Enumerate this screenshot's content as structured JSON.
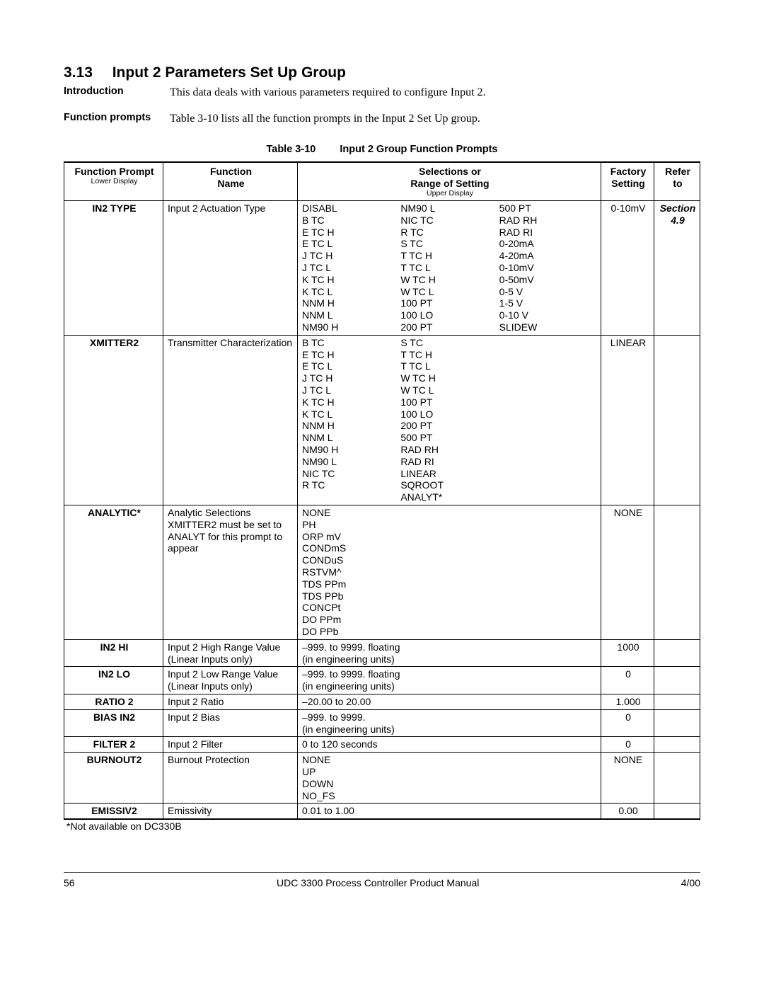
{
  "section": {
    "number": "3.13",
    "title": "Input 2 Parameters Set Up Group"
  },
  "intro": {
    "label": "Introduction",
    "text": "This data deals with various parameters required to configure Input 2."
  },
  "fprompts": {
    "label": "Function prompts",
    "text": "Table 3-10 lists all the function prompts in the Input 2 Set Up group."
  },
  "table": {
    "caption_num": "Table 3-10",
    "caption_title": "Input 2 Group Function Prompts",
    "headers": {
      "prompt": "Function Prompt",
      "prompt_sub": "Lower Display",
      "name": "Function\nName",
      "sel": "Selections or\nRange of Setting",
      "sel_sub": "Upper Display",
      "factory": "Factory\nSetting",
      "refer": "Refer\nto"
    },
    "rows": [
      {
        "prompt": "IN2 TYPE",
        "name": "Input 2 Actuation Type",
        "sel_cols": [
          [
            "DISABL",
            "B TC",
            "E TC H",
            "E TC L",
            "J TC H",
            "J TC L",
            "K TC H",
            "K TC L",
            "NNM H",
            "NNM L",
            "NM90 H"
          ],
          [
            "NM90 L",
            "NIC TC",
            "R TC",
            "S TC",
            "T TC H",
            "T TC L",
            "W TC H",
            "W TC L",
            "100 PT",
            "100 LO",
            "200 PT"
          ],
          [
            "500 PT",
            "RAD RH",
            "RAD RI",
            "0-20mA",
            "4-20mA",
            "0-10mV",
            "0-50mV",
            "0-5 V",
            "1-5 V",
            "0-10 V",
            "SLIDEW"
          ]
        ],
        "factory": "0-10mV",
        "refer": "Section\n4.9",
        "refer_styled": true
      },
      {
        "prompt": "XMITTER2",
        "name": "Transmitter Characterization",
        "sel_cols": [
          [
            "B TC",
            "E TC H",
            "E TC L",
            "J TC H",
            "J TC L",
            "K TC H",
            "K TC L",
            "NNM H",
            "NNM L",
            "NM90 H",
            "NM90 L",
            "NIC TC",
            "R TC"
          ],
          [
            "S TC",
            "T TC H",
            "T TC L",
            "W TC H",
            "W TC L",
            "100 PT",
            "100 LO",
            "200 PT",
            "500 PT",
            "RAD RH",
            "RAD RI",
            "LINEAR",
            "SQROOT",
            "ANALYT*"
          ],
          []
        ],
        "factory": "LINEAR"
      },
      {
        "prompt": "ANALYTIC*",
        "name": "Analytic Selections\nXMITTER2 must be set to ANALYT for this prompt to appear",
        "sel_cols": [
          [
            "NONE",
            "PH",
            "ORP mV",
            "CONDmS",
            "CONDuS",
            "RSTVM^",
            "TDS PPm",
            "TDS PPb",
            "CONCPt",
            "DO PPm",
            "DO PPb"
          ]
        ],
        "factory": "NONE"
      },
      {
        "prompt": "IN2 HI",
        "name": "Input 2 High Range Value\n(Linear Inputs only)",
        "sel_text": "–999. to 9999. floating\n(in engineering units)",
        "factory": "1000"
      },
      {
        "prompt": "IN2 LO",
        "name": "Input 2 Low Range Value\n(Linear Inputs only)",
        "sel_text": "–999. to 9999. floating\n(in engineering units)",
        "factory": "0"
      },
      {
        "prompt": "RATIO 2",
        "name": "Input 2 Ratio",
        "sel_text": "–20.00 to 20.00",
        "factory": "1.000"
      },
      {
        "prompt": "BIAS IN2",
        "name": "Input 2 Bias",
        "sel_text": "–999. to 9999.\n(in engineering units)",
        "factory": "0"
      },
      {
        "prompt": "FILTER 2",
        "name": "Input 2 Filter",
        "sel_text": "0 to 120 seconds",
        "factory": "0"
      },
      {
        "prompt": "BURNOUT2",
        "name": "Burnout Protection",
        "sel_cols": [
          [
            "NONE",
            "UP",
            "DOWN",
            "NO_FS"
          ]
        ],
        "factory": "NONE"
      },
      {
        "prompt": "EMISSIV2",
        "name": "Emissivity",
        "sel_text": "0.01 to 1.00",
        "factory": "0.00"
      }
    ],
    "footnote": "*Not available on DC330B"
  },
  "footer": {
    "page": "56",
    "title": "UDC 3300 Process Controller Product Manual",
    "date": "4/00"
  }
}
